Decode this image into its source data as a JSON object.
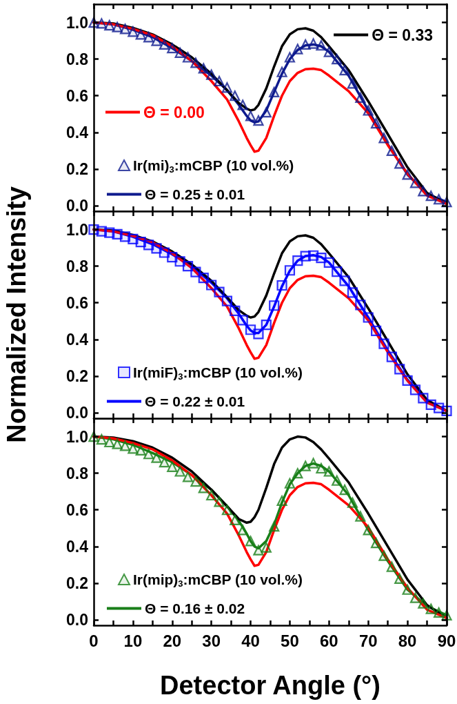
{
  "chart_data": [
    {
      "type": "line",
      "legend": "bottom left",
      "tick_labels": "y",
      "ylim": [
        -0.03,
        1.1
      ],
      "xlim": [
        0,
        90
      ],
      "yticks": [
        {
          "value": 0,
          "label": "0.0"
        },
        {
          "value": 0.2,
          "label": "0.2"
        },
        {
          "value": 0.4,
          "label": "0.4"
        },
        {
          "value": 0.6,
          "label": "0.6"
        },
        {
          "value": 0.8,
          "label": "0.8"
        },
        {
          "value": 1,
          "label": "1.0"
        }
      ],
      "xticks": [
        0,
        {
          "value": 5,
          "label": null
        },
        10,
        {
          "value": 15,
          "label": null
        },
        20,
        {
          "value": 25,
          "label": null
        },
        30,
        {
          "value": 35,
          "label": null
        },
        40,
        {
          "value": 45,
          "label": null
        },
        50,
        {
          "value": 55,
          "label": null
        },
        60,
        {
          "value": 65,
          "label": null
        },
        70,
        {
          "value": 75,
          "label": null
        },
        80,
        {
          "value": 85,
          "label": null
        },
        90
      ],
      "series": [
        {
          "type": "scatter",
          "marker": "triangle",
          "name": "Ir(mi)$_{3}$:mCBP (10 vol.%)",
          "color": "#0e1a8e",
          "x": [
            0,
            2,
            4,
            6,
            8,
            10,
            12,
            14,
            16,
            18,
            20,
            22,
            24,
            26,
            28,
            30,
            32,
            34,
            36,
            38,
            40,
            42,
            44,
            46,
            48,
            50,
            52,
            54,
            56,
            58,
            60,
            62,
            64,
            66,
            68,
            70,
            72,
            74,
            76,
            78,
            80,
            82,
            84,
            86,
            88,
            90
          ],
          "values": [
            1.0,
            0.995,
            0.985,
            0.975,
            0.965,
            0.95,
            0.935,
            0.92,
            0.9,
            0.88,
            0.86,
            0.835,
            0.81,
            0.78,
            0.75,
            0.715,
            0.68,
            0.645,
            0.6,
            0.55,
            0.49,
            0.465,
            0.51,
            0.62,
            0.73,
            0.81,
            0.855,
            0.88,
            0.885,
            0.875,
            0.84,
            0.8,
            0.74,
            0.667,
            0.59,
            0.52,
            0.45,
            0.37,
            0.3,
            0.23,
            0.17,
            0.125,
            0.08,
            0.054,
            0.035,
            0.02
          ]
        },
        {
          "type": "line",
          "marker": "none",
          "name": "Θ = 0.25 ± 0.01",
          "color": "#0e1a8e",
          "x": [
            0,
            5,
            10,
            15,
            20,
            25,
            30,
            34,
            37,
            39,
            40,
            41,
            42,
            44,
            46,
            48,
            50,
            52,
            54,
            56,
            58,
            60,
            65,
            70,
            75,
            80,
            85,
            90
          ],
          "values": [
            1,
            0.99,
            0.96,
            0.92,
            0.86,
            0.79,
            0.71,
            0.63,
            0.55,
            0.49,
            0.465,
            0.455,
            0.46,
            0.52,
            0.62,
            0.72,
            0.8,
            0.85,
            0.875,
            0.88,
            0.87,
            0.84,
            0.71,
            0.52,
            0.335,
            0.17,
            0.065,
            0.02
          ]
        },
        {
          "type": "line",
          "marker": "none",
          "name": "Θ = 0.33",
          "color": "#000000",
          "x": [
            0,
            5,
            10,
            15,
            20,
            25,
            30,
            34,
            37,
            39,
            40,
            41,
            42,
            44,
            46,
            48,
            50,
            52,
            54,
            56,
            58,
            60,
            65,
            70,
            75,
            80,
            85,
            90
          ],
          "values": [
            1,
            0.995,
            0.97,
            0.935,
            0.88,
            0.81,
            0.72,
            0.63,
            0.56,
            0.53,
            0.52,
            0.525,
            0.55,
            0.64,
            0.76,
            0.87,
            0.935,
            0.963,
            0.968,
            0.955,
            0.92,
            0.87,
            0.74,
            0.57,
            0.39,
            0.21,
            0.07,
            0.01
          ]
        },
        {
          "type": "line",
          "marker": "none",
          "name": "Θ = 0.00",
          "color": "#ff0000",
          "x": [
            0,
            5,
            10,
            15,
            20,
            25,
            30,
            34,
            37,
            39,
            40,
            41,
            42,
            44,
            46,
            48,
            50,
            52,
            54,
            56,
            58,
            60,
            65,
            70,
            75,
            80,
            85,
            90
          ],
          "values": [
            1,
            0.99,
            0.965,
            0.93,
            0.87,
            0.79,
            0.68,
            0.58,
            0.46,
            0.37,
            0.33,
            0.295,
            0.3,
            0.37,
            0.49,
            0.6,
            0.68,
            0.725,
            0.745,
            0.748,
            0.74,
            0.71,
            0.625,
            0.505,
            0.33,
            0.175,
            0.055,
            0.01
          ]
        }
      ]
    },
    {
      "type": "line",
      "legend": "bottom left",
      "tick_labels": "y",
      "ylabel": "Normalized Intensity",
      "ylim": [
        -0.03,
        1.1
      ],
      "xlim": [
        0,
        90
      ],
      "yticks": [
        {
          "value": 0,
          "label": "0.0"
        },
        {
          "value": 0.2,
          "label": "0.2"
        },
        {
          "value": 0.4,
          "label": "0.4"
        },
        {
          "value": 0.6,
          "label": "0.6"
        },
        {
          "value": 0.8,
          "label": "0.8"
        },
        {
          "value": 1,
          "label": "1.0"
        }
      ],
      "xticks": [
        0,
        {
          "value": 5,
          "label": null
        },
        10,
        {
          "value": 15,
          "label": null
        },
        20,
        {
          "value": 25,
          "label": null
        },
        30,
        {
          "value": 35,
          "label": null
        },
        40,
        {
          "value": 45,
          "label": null
        },
        50,
        {
          "value": 55,
          "label": null
        },
        60,
        {
          "value": 65,
          "label": null
        },
        70,
        {
          "value": 75,
          "label": null
        },
        80,
        {
          "value": 85,
          "label": null
        },
        90
      ],
      "series": [
        {
          "type": "scatter",
          "marker": "square",
          "name": "Ir(miF)$_{3}$:mCBP (10 vol.%)",
          "color": "#0000ff",
          "x": [
            0,
            2,
            4,
            6,
            8,
            10,
            12,
            14,
            16,
            18,
            20,
            22,
            24,
            26,
            28,
            30,
            32,
            34,
            36,
            38,
            40,
            42,
            44,
            46,
            48,
            50,
            52,
            54,
            56,
            58,
            60,
            62,
            64,
            66,
            68,
            70,
            72,
            74,
            76,
            78,
            80,
            82,
            84,
            86,
            88,
            90
          ],
          "values": [
            1.0,
            0.99,
            0.983,
            0.974,
            0.961,
            0.948,
            0.932,
            0.916,
            0.897,
            0.874,
            0.849,
            0.826,
            0.8,
            0.768,
            0.736,
            0.697,
            0.659,
            0.61,
            0.556,
            0.505,
            0.453,
            0.43,
            0.48,
            0.585,
            0.695,
            0.777,
            0.83,
            0.855,
            0.858,
            0.845,
            0.82,
            0.77,
            0.72,
            0.656,
            0.588,
            0.52,
            0.447,
            0.376,
            0.305,
            0.238,
            0.176,
            0.125,
            0.08,
            0.044,
            0.026,
            0.01
          ]
        },
        {
          "type": "line",
          "marker": "none",
          "name": "Θ = 0.22 ± 0.01",
          "color": "#0000ff",
          "x": [
            0,
            5,
            10,
            15,
            20,
            25,
            30,
            34,
            37,
            39,
            40,
            41,
            42,
            44,
            46,
            48,
            50,
            52,
            54,
            56,
            58,
            60,
            65,
            70,
            75,
            80,
            85,
            90
          ],
          "values": [
            1,
            0.99,
            0.96,
            0.92,
            0.865,
            0.8,
            0.71,
            0.625,
            0.54,
            0.475,
            0.45,
            0.435,
            0.435,
            0.48,
            0.58,
            0.69,
            0.775,
            0.83,
            0.855,
            0.86,
            0.85,
            0.82,
            0.69,
            0.52,
            0.34,
            0.18,
            0.065,
            0.01
          ]
        },
        {
          "type": "line",
          "marker": "none",
          "color": "#000000",
          "x": [
            0,
            5,
            10,
            15,
            20,
            25,
            30,
            34,
            37,
            39,
            40,
            41,
            42,
            44,
            46,
            48,
            50,
            52,
            54,
            56,
            58,
            60,
            65,
            70,
            75,
            80,
            85,
            90
          ],
          "values": [
            1,
            0.995,
            0.97,
            0.935,
            0.88,
            0.81,
            0.72,
            0.63,
            0.56,
            0.53,
            0.52,
            0.525,
            0.55,
            0.64,
            0.76,
            0.87,
            0.935,
            0.963,
            0.968,
            0.955,
            0.92,
            0.87,
            0.74,
            0.57,
            0.39,
            0.21,
            0.07,
            0.01
          ]
        },
        {
          "type": "line",
          "marker": "none",
          "color": "#ff0000",
          "x": [
            0,
            5,
            10,
            15,
            20,
            25,
            30,
            34,
            37,
            39,
            40,
            41,
            42,
            44,
            46,
            48,
            50,
            52,
            54,
            56,
            58,
            60,
            65,
            70,
            75,
            80,
            85,
            90
          ],
          "values": [
            1,
            0.99,
            0.965,
            0.93,
            0.87,
            0.79,
            0.68,
            0.58,
            0.46,
            0.37,
            0.33,
            0.295,
            0.3,
            0.37,
            0.49,
            0.6,
            0.68,
            0.725,
            0.745,
            0.748,
            0.74,
            0.71,
            0.625,
            0.505,
            0.33,
            0.175,
            0.055,
            0.01
          ]
        }
      ]
    },
    {
      "type": "line",
      "legend": "bottom left",
      "xlabel": "Detector Angle (°)",
      "ylim": [
        -0.03,
        1.1
      ],
      "xlim": [
        0,
        90
      ],
      "yticks": [
        {
          "value": 0,
          "label": "0.0"
        },
        {
          "value": 0.2,
          "label": "0.2"
        },
        {
          "value": 0.4,
          "label": "0.4"
        },
        {
          "value": 0.6,
          "label": "0.6"
        },
        {
          "value": 0.8,
          "label": "0.8"
        },
        {
          "value": 1,
          "label": "1.0"
        }
      ],
      "xticks": [
        0,
        {
          "value": 5,
          "label": null
        },
        10,
        {
          "value": 15,
          "label": null
        },
        20,
        {
          "value": 25,
          "label": null
        },
        30,
        {
          "value": 35,
          "label": null
        },
        40,
        {
          "value": 45,
          "label": null
        },
        50,
        {
          "value": 55,
          "label": null
        },
        60,
        {
          "value": 65,
          "label": null
        },
        70,
        {
          "value": 75,
          "label": null
        },
        80,
        {
          "value": 85,
          "label": null
        },
        90
      ],
      "series": [
        {
          "type": "scatter",
          "marker": "triangle",
          "name": "Ir(mip)$_{3}$:mCBP (10 vol.%)",
          "color": "#197f19",
          "x": [
            0,
            2,
            4,
            6,
            8,
            10,
            12,
            14,
            16,
            18,
            20,
            22,
            24,
            26,
            28,
            30,
            32,
            34,
            36,
            38,
            40,
            42,
            44,
            46,
            48,
            50,
            52,
            54,
            56,
            58,
            60,
            62,
            64,
            66,
            68,
            70,
            72,
            74,
            76,
            78,
            80,
            82,
            84,
            86,
            88,
            90
          ],
          "values": [
            1.0,
            0.985,
            0.97,
            0.96,
            0.95,
            0.935,
            0.925,
            0.905,
            0.885,
            0.86,
            0.835,
            0.81,
            0.78,
            0.755,
            0.72,
            0.68,
            0.645,
            0.6,
            0.545,
            0.49,
            0.43,
            0.38,
            0.395,
            0.51,
            0.65,
            0.745,
            0.8,
            0.84,
            0.855,
            0.827,
            0.81,
            0.76,
            0.71,
            0.64,
            0.565,
            0.49,
            0.42,
            0.35,
            0.29,
            0.225,
            0.165,
            0.12,
            0.09,
            0.06,
            0.04,
            0.025
          ]
        },
        {
          "type": "line",
          "marker": "none",
          "name": "Θ = 0.16 ± 0.02",
          "color": "#197f19",
          "x": [
            0,
            5,
            10,
            15,
            20,
            25,
            30,
            34,
            37,
            39,
            40,
            41,
            42,
            44,
            46,
            48,
            50,
            52,
            54,
            56,
            58,
            60,
            65,
            70,
            75,
            80,
            85,
            90
          ],
          "values": [
            1,
            0.985,
            0.955,
            0.91,
            0.86,
            0.79,
            0.71,
            0.62,
            0.54,
            0.47,
            0.43,
            0.4,
            0.39,
            0.43,
            0.52,
            0.64,
            0.74,
            0.8,
            0.84,
            0.853,
            0.84,
            0.81,
            0.68,
            0.49,
            0.32,
            0.165,
            0.075,
            0.025
          ]
        },
        {
          "type": "line",
          "marker": "none",
          "color": "#000000",
          "x": [
            0,
            5,
            10,
            15,
            20,
            25,
            30,
            34,
            37,
            39,
            40,
            41,
            42,
            44,
            46,
            48,
            50,
            52,
            54,
            56,
            58,
            60,
            65,
            70,
            75,
            80,
            85,
            90
          ],
          "values": [
            1,
            0.995,
            0.975,
            0.94,
            0.885,
            0.81,
            0.71,
            0.62,
            0.55,
            0.53,
            0.535,
            0.56,
            0.6,
            0.72,
            0.85,
            0.94,
            0.985,
            1.0,
            0.995,
            0.97,
            0.93,
            0.88,
            0.75,
            0.58,
            0.4,
            0.22,
            0.08,
            0.01
          ]
        },
        {
          "type": "line",
          "marker": "none",
          "color": "#ff0000",
          "x": [
            0,
            5,
            10,
            15,
            20,
            25,
            30,
            34,
            37,
            39,
            40,
            41,
            42,
            44,
            46,
            48,
            50,
            52,
            54,
            56,
            58,
            60,
            65,
            70,
            75,
            80,
            85,
            90
          ],
          "values": [
            1,
            0.99,
            0.965,
            0.93,
            0.87,
            0.79,
            0.68,
            0.58,
            0.46,
            0.37,
            0.33,
            0.295,
            0.3,
            0.37,
            0.49,
            0.6,
            0.68,
            0.725,
            0.745,
            0.748,
            0.74,
            0.71,
            0.625,
            0.505,
            0.33,
            0.175,
            0.055,
            0.01
          ]
        }
      ]
    }
  ]
}
